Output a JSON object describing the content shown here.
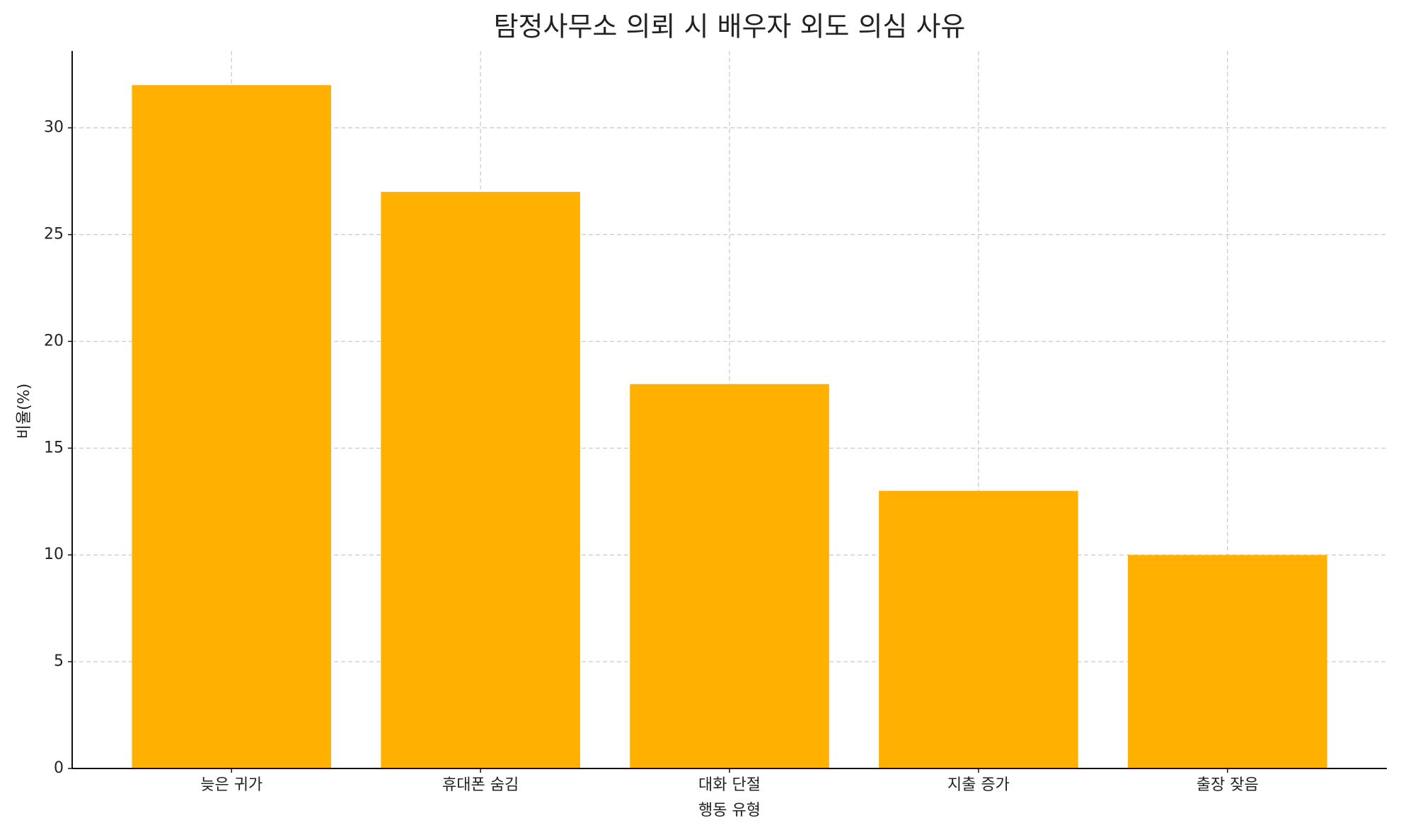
{
  "chart_data": {
    "type": "bar",
    "title": "탐정사무소 의뢰 시 배우자 외도 의심 사유",
    "x_label": "행동 유형",
    "y_label": "비율(%)",
    "categories": [
      "늦은 귀가",
      "휴대폰 숨김",
      "대화 단절",
      "지출 증가",
      "출장 잦음"
    ],
    "values": [
      32,
      27,
      18,
      13,
      10
    ],
    "color": "#ffb000",
    "ylim": [
      0,
      33.6
    ],
    "yticks": [
      0,
      5,
      10,
      15,
      20,
      25,
      30
    ],
    "grid": true
  }
}
